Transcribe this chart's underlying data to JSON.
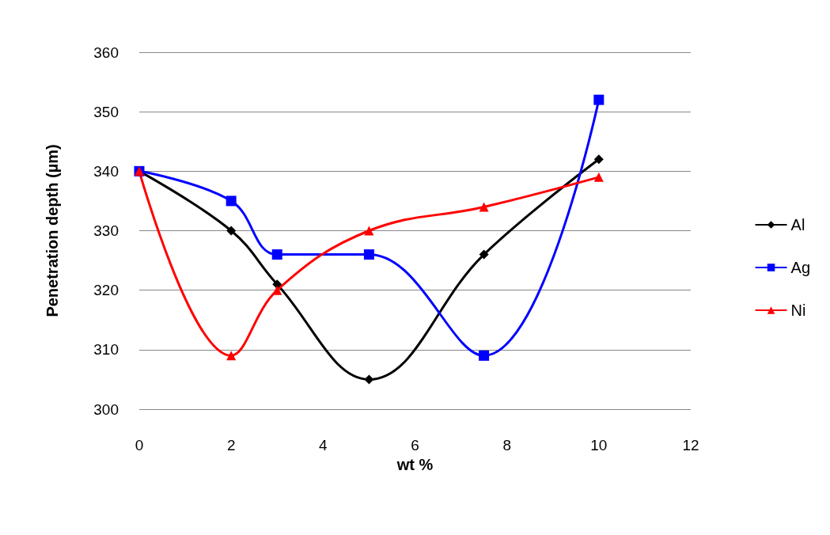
{
  "chart_data": {
    "type": "line",
    "xlabel": "wt %",
    "ylabel": "Penetration depth (µm)",
    "xlim": [
      0,
      12
    ],
    "xticks": [
      0,
      2,
      4,
      6,
      8,
      10,
      12
    ],
    "ylim": [
      300,
      360
    ],
    "yticks": [
      300,
      310,
      320,
      330,
      340,
      350,
      360
    ],
    "grid": "y",
    "legend": "right",
    "series": [
      {
        "name": "Al",
        "color": "#000000",
        "marker": "diamond",
        "x": [
          0,
          2,
          3,
          5,
          7.5,
          10
        ],
        "values": [
          340,
          330,
          321,
          305,
          326,
          342
        ]
      },
      {
        "name": "Ag",
        "color": "#0000ff",
        "marker": "square",
        "x": [
          0,
          2,
          3,
          5,
          7.5,
          10
        ],
        "values": [
          340,
          335,
          326,
          326,
          309,
          352
        ]
      },
      {
        "name": "Ni",
        "color": "#ff0000",
        "marker": "triangle",
        "x": [
          0,
          2,
          3,
          5,
          7.5,
          10
        ],
        "values": [
          340,
          309,
          320,
          330,
          334,
          339
        ]
      }
    ]
  }
}
